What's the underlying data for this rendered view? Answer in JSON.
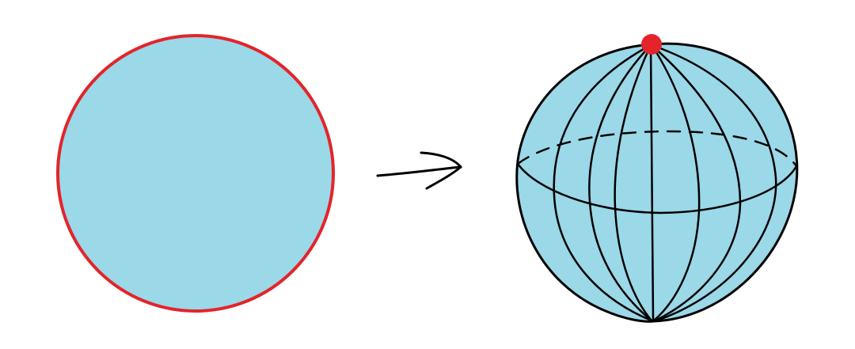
{
  "diagram": {
    "colors": {
      "fill": "#9bd8e8",
      "outline": "#e3242b",
      "line": "#000000",
      "pole": "#e3242b"
    },
    "shapes": {
      "left": "flat-disk",
      "arrow": "right-arrow",
      "right": "sphere-with-meridians"
    }
  }
}
